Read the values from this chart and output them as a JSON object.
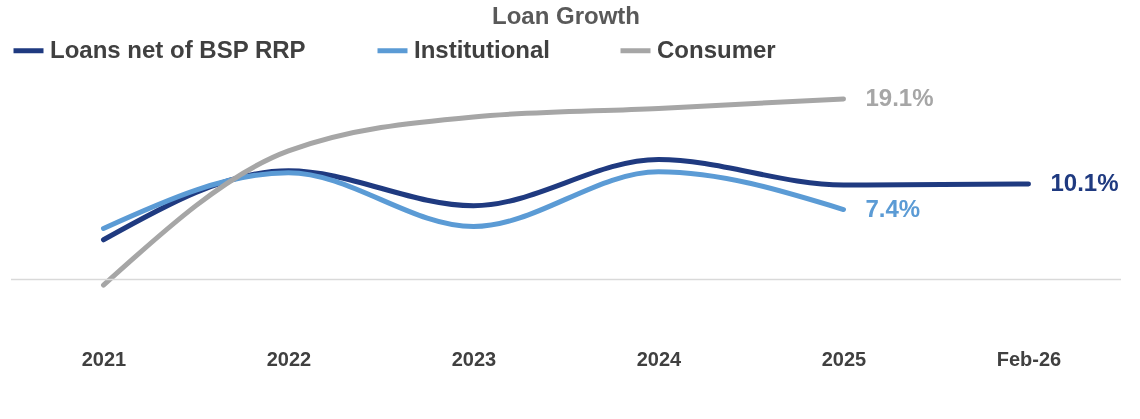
{
  "chart_data": {
    "type": "line",
    "title": "Loan Growth",
    "legend": "top",
    "categories": [
      "2021",
      "2022",
      "2023",
      "2024",
      "2025",
      "Feb-26"
    ],
    "series": [
      {
        "name": "Loans net of BSP RRP",
        "color": "#1f3a80",
        "values": [
          4.2,
          11.5,
          7.8,
          12.7,
          10.0,
          10.1
        ],
        "value_labels": [
          null,
          null,
          null,
          null,
          null,
          "10.1%"
        ]
      },
      {
        "name": "Institutional",
        "color": "#5b9bd5",
        "values": [
          5.4,
          11.3,
          5.6,
          11.4,
          7.4,
          null
        ],
        "value_labels": [
          null,
          null,
          null,
          null,
          "7.4%",
          null
        ]
      },
      {
        "name": "Consumer",
        "color": "#a6a6a6",
        "values": [
          -0.6,
          13.6,
          17.2,
          18.1,
          19.1,
          null
        ],
        "value_labels": [
          null,
          null,
          null,
          null,
          "19.1%",
          null
        ]
      }
    ]
  }
}
